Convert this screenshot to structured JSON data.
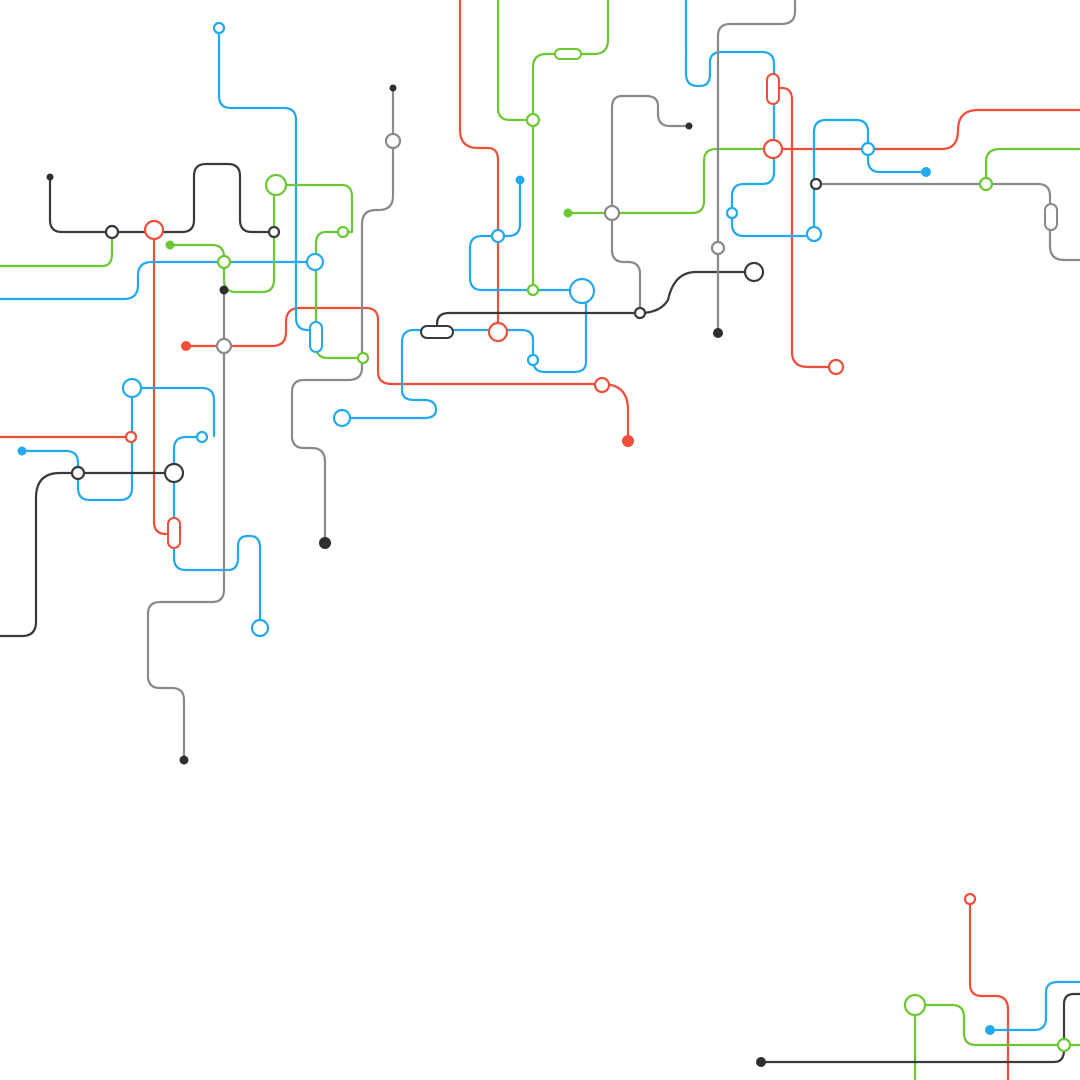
{
  "diagram": {
    "description_text": "",
    "colors": {
      "red": "#f04e3a",
      "blue": "#22aaf0",
      "green": "#6cc832",
      "dark": "#2e2e2e",
      "grey": "#8a8a8a",
      "background": "#ffffff"
    }
  }
}
